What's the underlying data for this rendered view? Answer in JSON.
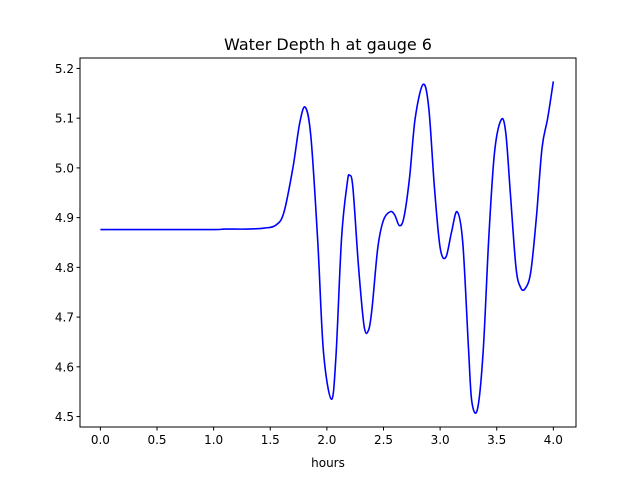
{
  "chart_data": {
    "type": "line",
    "title": "Water Depth h at gauge 6",
    "xlabel": "hours",
    "ylabel": "",
    "xlim": [
      -0.18,
      4.2
    ],
    "ylim": [
      4.479,
      5.221
    ],
    "xticks": [
      0.0,
      0.5,
      1.0,
      1.5,
      2.0,
      2.5,
      3.0,
      3.5,
      4.0
    ],
    "xtick_labels": [
      "0.0",
      "0.5",
      "1.0",
      "1.5",
      "2.0",
      "2.5",
      "3.0",
      "3.5",
      "4.0"
    ],
    "yticks": [
      4.5,
      4.6,
      4.7,
      4.8,
      4.9,
      5.0,
      5.1,
      5.2
    ],
    "ytick_labels": [
      "4.5",
      "4.6",
      "4.7",
      "4.8",
      "4.9",
      "5.0",
      "5.1",
      "5.2"
    ],
    "grid": false,
    "line_color": "#0000ff",
    "series": [
      {
        "x": [
          0.0,
          0.5,
          1.0,
          1.1,
          1.3,
          1.45,
          1.55,
          1.62,
          1.7,
          1.76,
          1.81,
          1.86,
          1.92,
          1.97,
          2.04,
          2.08,
          2.13,
          2.18,
          2.2,
          2.23,
          2.28,
          2.33,
          2.37,
          2.4,
          2.45,
          2.5,
          2.56,
          2.6,
          2.64,
          2.68,
          2.73,
          2.78,
          2.85,
          2.9,
          2.95,
          3.0,
          3.05,
          3.1,
          3.15,
          3.2,
          3.25,
          3.28,
          3.33,
          3.38,
          3.43,
          3.48,
          3.54,
          3.58,
          3.62,
          3.67,
          3.71,
          3.75,
          3.8,
          3.85,
          3.9,
          3.95,
          4.0
        ],
        "y": [
          4.876,
          4.876,
          4.876,
          4.877,
          4.877,
          4.879,
          4.885,
          4.91,
          5.0,
          5.09,
          5.122,
          5.06,
          4.85,
          4.63,
          4.535,
          4.62,
          4.86,
          4.97,
          4.985,
          4.96,
          4.8,
          4.68,
          4.675,
          4.72,
          4.84,
          4.895,
          4.912,
          4.905,
          4.884,
          4.9,
          4.98,
          5.1,
          5.168,
          5.12,
          4.96,
          4.84,
          4.82,
          4.87,
          4.912,
          4.85,
          4.64,
          4.53,
          4.515,
          4.63,
          4.86,
          5.03,
          5.097,
          5.07,
          4.95,
          4.8,
          4.76,
          4.757,
          4.79,
          4.9,
          5.04,
          5.1,
          5.174
        ]
      }
    ]
  }
}
